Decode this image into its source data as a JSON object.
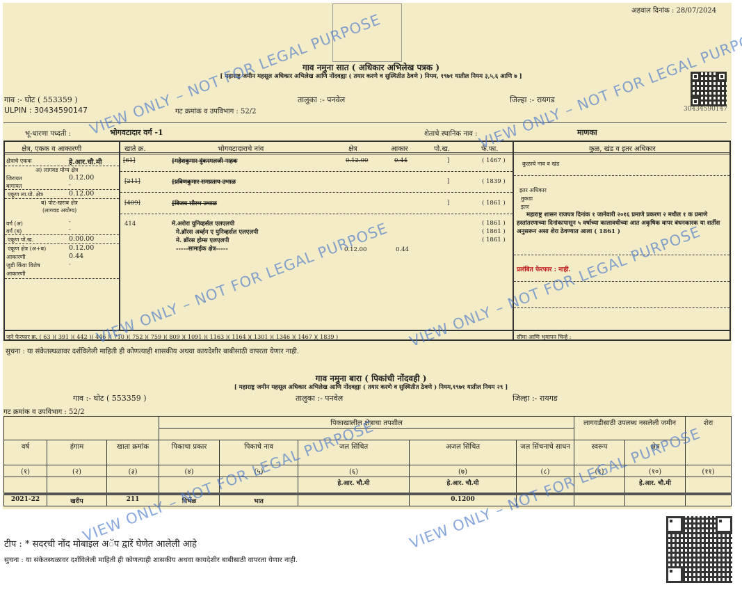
{
  "report_date": "अहवाल दिनांक : 28/07/2024",
  "form7": {
    "title": "गाव नमुना सात ( अधिकार अभिलेख पत्रक )",
    "subtitle": "[ महाराष्ट्र जमीन महसूल अधिकार अभिलेख आणि नोंदवह्या ( तयार करणे व सुस्थितीत ठेवणे ) नियम, १९७१ यातील नियम ३,५,६ आणि ७ ]",
    "village": "गाव :- घोट ( 553359 )",
    "ulpin": "ULPIN : 30434590147",
    "taluka": "तालुका :- पनवेल",
    "gat": "गट क्रमांक व उपविभाग : 52/2",
    "district": "जिल्हा :- रायगड",
    "qr_number": "30434590147",
    "tenure_label": "भू-धारणा पध्दती :",
    "tenure_value": "भोगवटादार वर्ग -1",
    "local_name_label": "शेताचे स्थानिक नाव :",
    "local_name_value": "माणका",
    "headers": [
      "क्षेत्र, एकक व आकारणी",
      "खाते क्र.",
      "भोगवटादाराचे नांव",
      "क्षेत्र",
      "आकार",
      "पो.ख.",
      "फे.फा.",
      "कुळ, खंड व इतर अधिकार"
    ],
    "left": {
      "unit_label": "क्षेत्राचे एकक",
      "unit_value": "हे.आर.चौ.मी",
      "cultivable": "अ) लागवड योग्य क्षेत्र",
      "jirayat": "जिरायत",
      "jirayat_v": "0.12.00",
      "bagayat": "बागायत",
      "bagayat_v": "-",
      "total_cult": "एकूण ला.यो. क्षेत्र",
      "total_cult_v": "0.12.00",
      "pot": "ब) पोट-खराब क्षेत्र",
      "pot2": "(लागवड अयोग्य)",
      "varga_a": "वर्ग (अ)",
      "varga_a_v": "-",
      "varga_b": "वर्ग (ब)",
      "varga_b_v": "-",
      "total_pot": "एकूण पो.ख.",
      "total_pot_v": "0.00.00",
      "total_area": "एकूण क्षेत्र (अ+ब)",
      "total_area_v": "0.12.00",
      "akarni": "आकारणी",
      "akarni_v": "0.44",
      "judi": "जुडी किंवा विशेष",
      "judi2": "आकारणी",
      "judi_v": "-"
    },
    "owners": [
      {
        "khate": "[61]",
        "name": "[महेशकुमार दुंकरमलजी नाहक",
        "area": "0.12.00",
        "akar": "0.44",
        "pokh": "]",
        "ff": "( 1467 )"
      },
      {
        "khate": "[211]",
        "name": "[प्रविणकुमार रामप्रताप उभाळ",
        "area": "",
        "akar": "",
        "pokh": "]",
        "ff": "( 1839 )"
      },
      {
        "khate": "[409]",
        "name": "[विजय सौरभ उभाळ",
        "area": "",
        "akar": "",
        "pokh": "]",
        "ff": "( 1861 )"
      }
    ],
    "current": {
      "khate": "414",
      "names": [
        "मे.अरोरा युनिव्हर्सल एलएलपी",
        "मे.ब्रॉरस अर्ब्हन ए युनिव्हर्सल एलएलपी",
        "मे. ब्रॉरस होम्स एलएलपी",
        "-----सामाईक क्षेत्र-----"
      ],
      "ff": [
        "( 1861 )",
        "( 1861 )",
        "( 1861 )"
      ],
      "area": "0.12.00",
      "akar": "0.44"
    },
    "rights": {
      "kul": "कुळाचे नाव व खंड",
      "other": "इतर अधिकार",
      "tukda": "तुकडा",
      "itar": "इतर",
      "note": "महाराष्ट्र शासन राजपत्र दिनांक १ जानेवारी २०१६ प्रमाणे प्रकरण २ मधील १ क प्रमाणे हस्तांतरणाच्या दिनांकापासून ५ वर्षाच्या कालावधीच्या आत अकृषिक वापर बंधनकारक या शर्तीस अनुसरून असा शेरा ठेवण्यात आला ( 1861 )",
      "pending": "प्रलंबित फेरफार : नाही.",
      "boundary": "सीमा आणि भुमापन चिन्हे :"
    },
    "old_mutations": "जुने फेरफार क्र.  ( 63 )( 391 )( 442 )( 446 )( 710 )( 752 )( 759 )( 809 )( 1091 )( 1163 )( 1164 )( 1301 )( 1346 )( 1467 )( 1839 )",
    "notice": "सुचना : या संकेतस्थळावर दर्शविलेली माहिती ही कोणत्याही शासकीय अथवा कायदेशीर बाबीसाठी वापरता येणार नाही."
  },
  "form12": {
    "title": "गाव नमुना बारा ( पिकांची नोंदवही )",
    "subtitle": "[ महाराष्ट्र जमीन महसूल अधिकार अभिलेख आणि नोंदवह्या ( तयार करणे व सुस्थितीत ठेवणे ) नियम,१९७१ यातील नियम २९ ]",
    "village": "गाव :- घोट ( 553359 )",
    "taluka": "तालुका :- पनवेल",
    "district": "जिल्हा :- रायगड",
    "gat": "गट क्रमांक व उपविभाग : 52/2",
    "group_crop": "पिकाखालील क्षेत्राचा तपशील",
    "group_land": "लागवडीसाठी उपलब्ध नसलेली जमीन",
    "shera": "शेरा",
    "columns": [
      "वर्ष",
      "हंगाम",
      "खाता क्रमांक",
      "पिकाचा प्रकार",
      "पिकाचे नाव",
      "जल सिंचित",
      "अजल सिंचित",
      "जल सिंचनाचे साधन",
      "स्वरूप",
      "क्षेत्र"
    ],
    "numbers": [
      "(१)",
      "(२)",
      "(३)",
      "(४)",
      "(५)",
      "(६)",
      "(७)",
      "(८)",
      "(९)",
      "(१०)",
      "(११)"
    ],
    "unit": "हे.आर. चौ.मी",
    "row": [
      "2021-22",
      "खरीप",
      "211",
      "निर्भेळ",
      "भात",
      "",
      "0.1200",
      "",
      "",
      "",
      ""
    ]
  },
  "footer": {
    "tip": "टीप : * सदरची नोंद मोबाइल अॅप द्वारें घेणेत आलेली आहे",
    "notice": "सुचना : या संकेतस्थळावर दर्शविलेली माहिती ही कोणत्याही शासकीय अथवा कायदेशीर बाबीसाठी वापरता येणार नाही."
  },
  "watermark": "VIEW ONLY – NOT FOR LEGAL PURPOSE",
  "colors": {
    "paper": "#f4ecc6",
    "watermark": "#4678cd",
    "pending": "#c0151b"
  }
}
